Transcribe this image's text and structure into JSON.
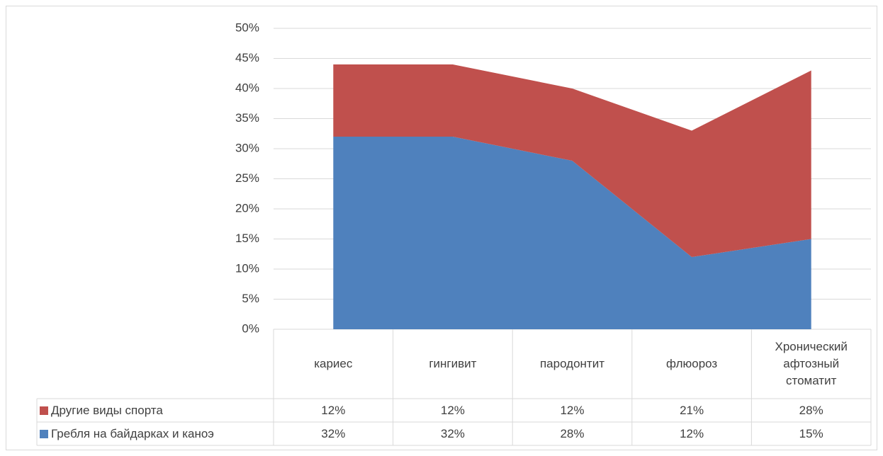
{
  "chart_data": {
    "type": "area",
    "stacked": true,
    "categories": [
      "кариес",
      "гингивит",
      "пародонтит",
      "флюороз",
      "Хронический афтозный стоматит"
    ],
    "series": [
      {
        "name": "Гребля на байдарках и каноэ",
        "color": "#4f81bd",
        "values": [
          32,
          32,
          28,
          12,
          15
        ],
        "value_labels": [
          "32%",
          "32%",
          "28%",
          "12%",
          "15%"
        ]
      },
      {
        "name": "Другие виды спорта",
        "color": "#c0504d",
        "values": [
          12,
          12,
          12,
          21,
          28
        ],
        "value_labels": [
          "12%",
          "12%",
          "12%",
          "21%",
          "28%"
        ]
      }
    ],
    "ylim": [
      0,
      50
    ],
    "yticks": [
      {
        "value": 0,
        "label": "0%"
      },
      {
        "value": 5,
        "label": "5%"
      },
      {
        "value": 10,
        "label": "10%"
      },
      {
        "value": 15,
        "label": "15%"
      },
      {
        "value": 20,
        "label": "20%"
      },
      {
        "value": 25,
        "label": "25%"
      },
      {
        "value": 30,
        "label": "30%"
      },
      {
        "value": 35,
        "label": "35%"
      },
      {
        "value": 40,
        "label": "40%"
      },
      {
        "value": 45,
        "label": "45%"
      },
      {
        "value": 50,
        "label": "50%"
      }
    ],
    "grid": true,
    "data_table": true
  }
}
